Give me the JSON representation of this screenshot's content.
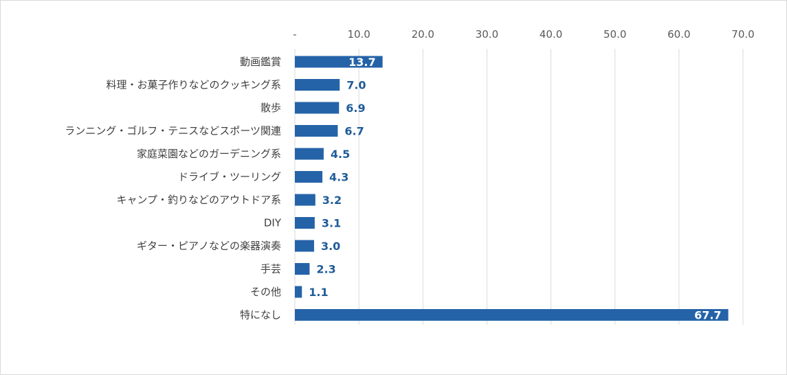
{
  "chart_data": {
    "type": "bar",
    "orientation": "horizontal",
    "categories": [
      "動画鑑賞",
      "料理・お菓子作りなどのクッキング系",
      "散歩",
      "ランニング・ゴルフ・テニスなどスポーツ関連",
      "家庭菜園などのガーデニング系",
      "ドライブ・ツーリング",
      "キャンプ・釣りなどのアウトドア系",
      "DIY",
      "ギター・ピアノなどの楽器演奏",
      "手芸",
      "その他",
      "特になし"
    ],
    "values": [
      13.7,
      7.0,
      6.9,
      6.7,
      4.5,
      4.3,
      3.2,
      3.1,
      3.0,
      2.3,
      1.1,
      67.7
    ],
    "value_labels": [
      "13.7",
      "7.0",
      "6.9",
      "6.7",
      "4.5",
      "4.3",
      "3.2",
      "3.1",
      "3.0",
      "2.3",
      "1.1",
      "67.7"
    ],
    "title": "",
    "xlabel": "",
    "ylabel": "",
    "xlim": [
      0,
      70
    ],
    "x_ticks": [
      0,
      10,
      20,
      30,
      40,
      50,
      60,
      70
    ],
    "x_tick_labels": [
      "-",
      "10.0",
      "20.0",
      "30.0",
      "40.0",
      "50.0",
      "60.0",
      "70.0"
    ],
    "x_axis_position": "top",
    "grid": "vertical",
    "legend": "none",
    "colors": {
      "bar": "#2563a8",
      "grid": "#d9d9d9",
      "label_inside": "#ffffff",
      "label_outside": "#1f5c99"
    }
  }
}
